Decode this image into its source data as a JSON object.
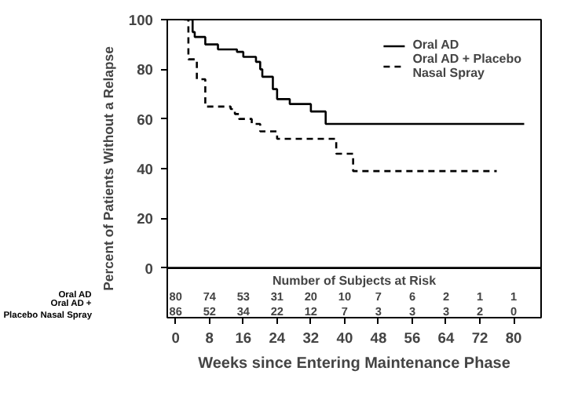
{
  "chart_data": {
    "type": "step",
    "xlabel": "Weeks since Entering Maintenance Phase",
    "ylabel": "Percent of Patients Without a Relapse",
    "xlim": [
      -2,
      86.5
    ],
    "ylim": [
      -20,
      100
    ],
    "xticks": [
      0,
      8,
      16,
      24,
      32,
      40,
      48,
      56,
      64,
      72,
      80
    ],
    "yticks": [
      0,
      20,
      40,
      60,
      80,
      100
    ],
    "grid": false,
    "legend": "top right",
    "marker": "none",
    "series": [
      {
        "name": "Oral AD",
        "color": "#000000",
        "line_style": "solid",
        "x": [
          2.7,
          4,
          4.5,
          7,
          10,
          14.5,
          16,
          19,
          20,
          20.5,
          23,
          24,
          27,
          32,
          35.5,
          82.5
        ],
        "values": [
          100,
          95,
          93,
          90,
          88,
          87,
          85,
          83,
          80,
          77,
          72,
          68,
          66,
          63,
          58,
          58
        ]
      },
      {
        "name": "Oral AD + Placebo\nNasal Spray",
        "color": "#000000",
        "line_style": "dashed",
        "x": [
          2,
          3,
          5,
          7,
          13,
          14,
          15,
          18,
          20,
          24,
          38,
          42,
          76
        ],
        "values": [
          100,
          84,
          76,
          65,
          64,
          62,
          60,
          58,
          55,
          52,
          46,
          39,
          39
        ]
      }
    ],
    "ref_lines": [
      {
        "axis": "y",
        "value": 0,
        "label": null
      }
    ],
    "annotations": [
      "Number of Subjects at Risk",
      "Oral AD",
      "Oral AD +\nPlacebo Nasal Spray",
      "80",
      "74",
      "53",
      "31",
      "20",
      "10",
      "7",
      "6",
      "2",
      "1",
      "1",
      "86",
      "52",
      "34",
      "22",
      "12",
      "7",
      "3",
      "3",
      "3",
      "2",
      "0"
    ]
  }
}
